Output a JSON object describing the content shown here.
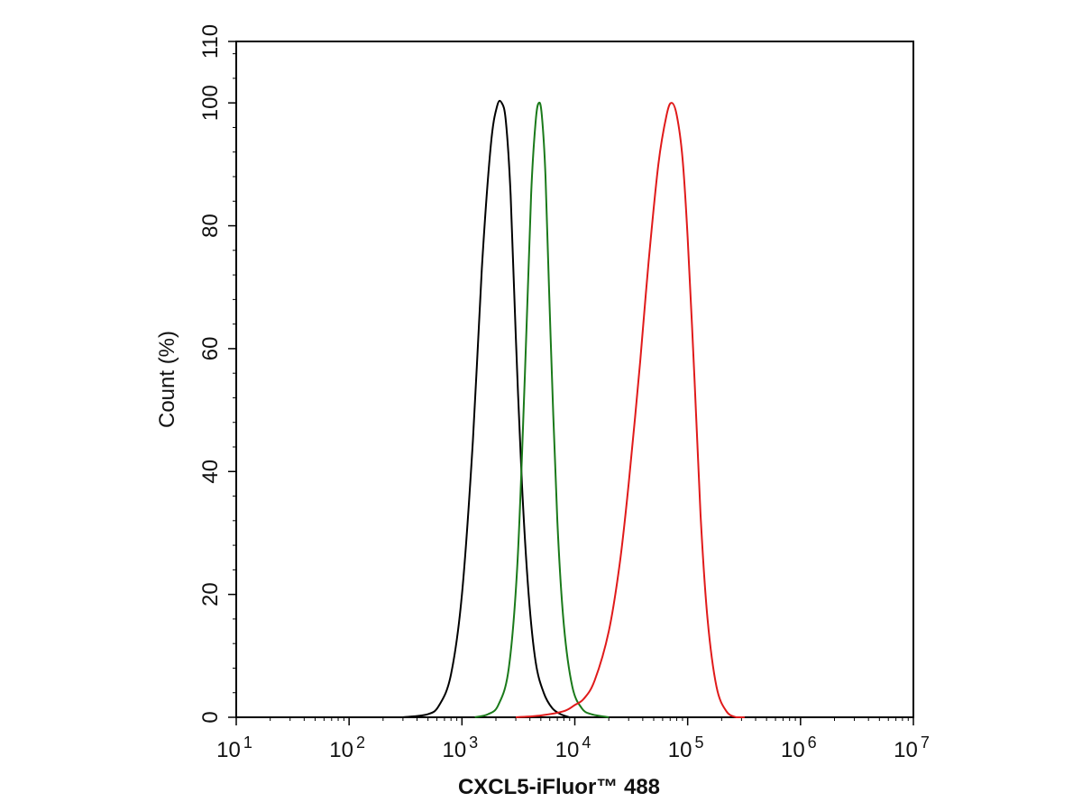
{
  "chart_data": {
    "type": "line",
    "title": "",
    "xlabel": "CXCL5-iFluor™ 488",
    "ylabel": "Count  (%)",
    "xscale": "log10",
    "xlim": [
      10,
      10000000
    ],
    "ylim": [
      0,
      110
    ],
    "grid": false,
    "legend": "none",
    "x_ticks": [
      {
        "base": "10",
        "exp": "1"
      },
      {
        "base": "10",
        "exp": "2"
      },
      {
        "base": "10",
        "exp": "3"
      },
      {
        "base": "10",
        "exp": "4"
      },
      {
        "base": "10",
        "exp": "5"
      },
      {
        "base": "10",
        "exp": "6"
      },
      {
        "base": "10",
        "exp": "7"
      }
    ],
    "y_ticks": [
      "0",
      "20",
      "40",
      "60",
      "80",
      "100",
      "110"
    ],
    "y_tick_values": [
      0,
      20,
      40,
      60,
      80,
      100,
      110
    ],
    "series": [
      {
        "color": "#000000",
        "x": [
          300,
          500,
          630,
          800,
          1000,
          1250,
          1500,
          1800,
          2050,
          2250,
          2450,
          2700,
          3000,
          3400,
          3900,
          4500,
          5300,
          6300,
          7500,
          9000
        ],
        "y": [
          0,
          0.5,
          2,
          7,
          20,
          45,
          73,
          93,
          99.5,
          100,
          97,
          85,
          62,
          38,
          20,
          9,
          4,
          1.5,
          0.5,
          0
        ]
      },
      {
        "color": "#1a7a1a",
        "x": [
          1300,
          1700,
          2100,
          2600,
          3100,
          3600,
          4100,
          4500,
          4800,
          5100,
          5500,
          6100,
          7000,
          8000,
          9500,
          11500,
          14000,
          20000
        ],
        "y": [
          0,
          0.5,
          2,
          8,
          25,
          55,
          85,
          97,
          100,
          98,
          88,
          62,
          32,
          15,
          5,
          1.5,
          0.5,
          0
        ]
      },
      {
        "color": "#e01a1a",
        "x": [
          3000,
          5000,
          8000,
          10000,
          12000,
          15000,
          20000,
          25000,
          30000,
          38000,
          45000,
          55000,
          65000,
          72000,
          80000,
          90000,
          100000,
          115000,
          130000,
          150000,
          180000,
          220000,
          270000,
          320000
        ],
        "y": [
          0,
          0.3,
          1,
          2,
          3,
          6,
          14,
          25,
          38,
          58,
          74,
          90,
          98,
          100,
          98,
          91,
          78,
          55,
          33,
          16,
          5,
          1,
          0,
          0
        ]
      }
    ]
  }
}
